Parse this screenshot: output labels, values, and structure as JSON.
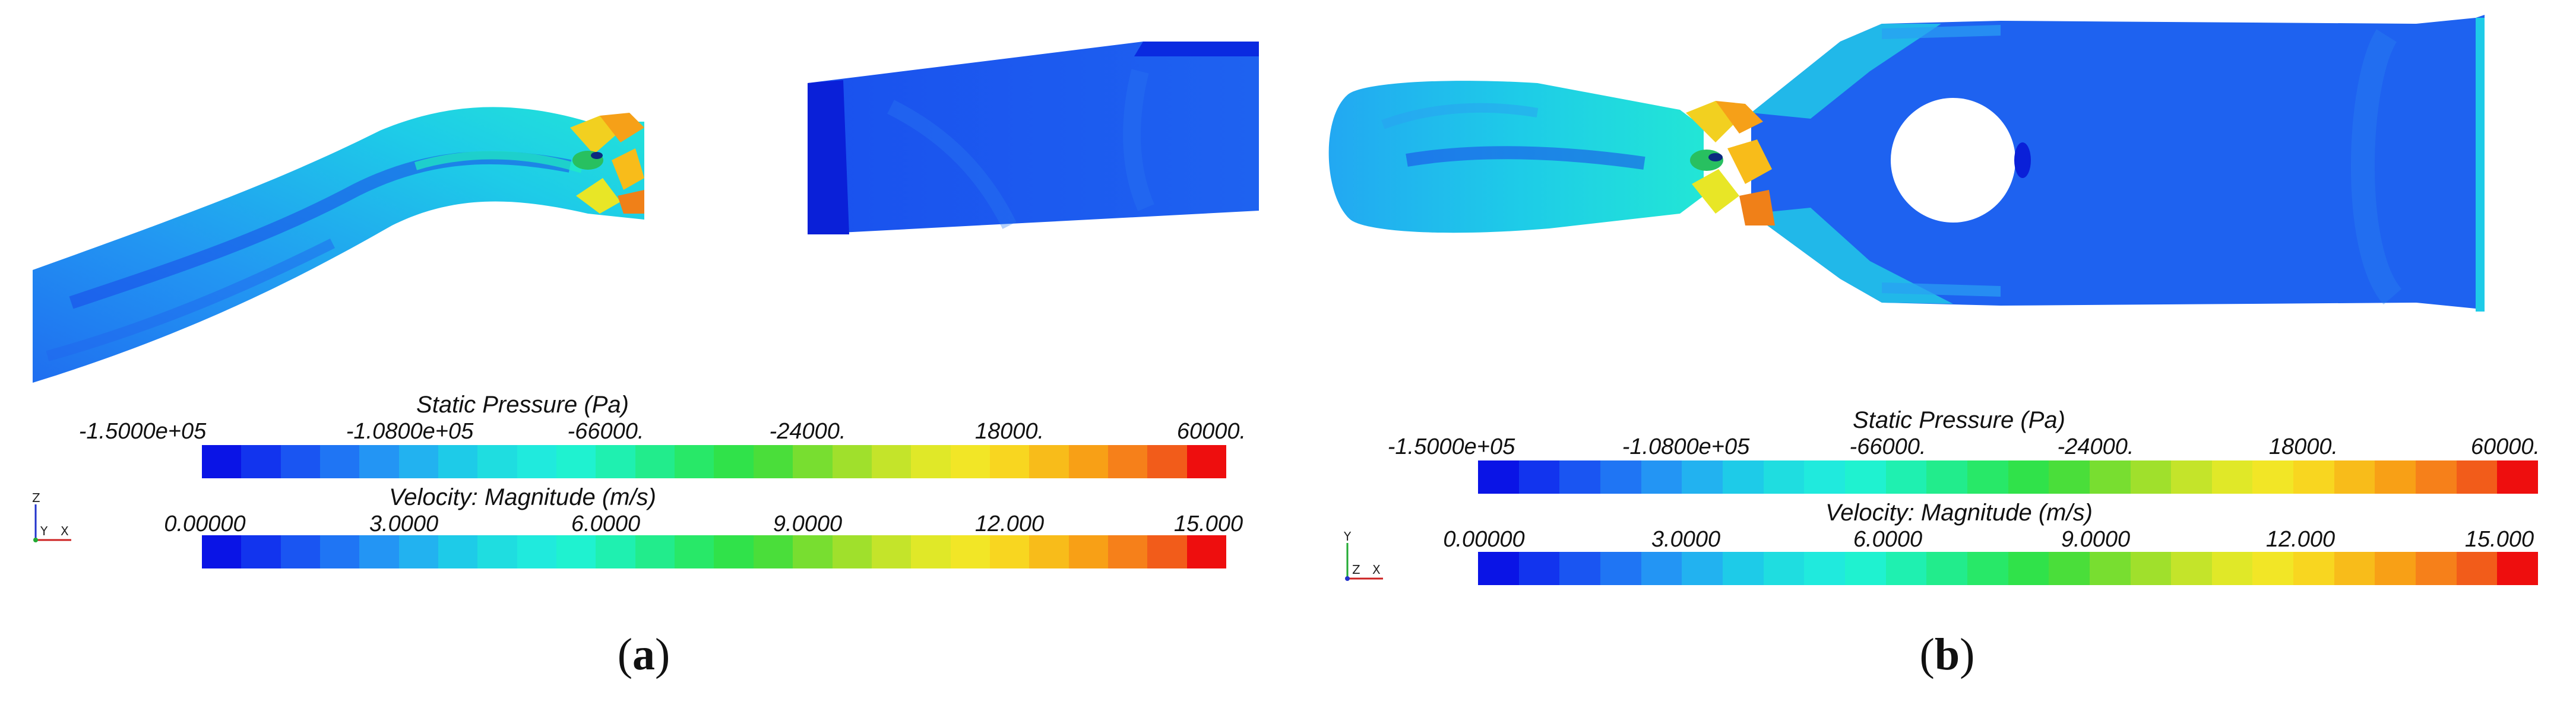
{
  "colormap": [
    "#0a14e6",
    "#1234ee",
    "#1a55f2",
    "#1f75f4",
    "#2395f4",
    "#22b2f0",
    "#1ecbe8",
    "#1fdde0",
    "#20eadd",
    "#1ff2d0",
    "#1ff0b0",
    "#22ec8c",
    "#28e868",
    "#30e24a",
    "#4ade3a",
    "#78de30",
    "#a0e02c",
    "#c4e42a",
    "#e0e828",
    "#f2e626",
    "#f8d620",
    "#f8bc1a",
    "#f8a016",
    "#f6801a",
    "#f25c1a",
    "#ee0e0e"
  ],
  "panels": [
    {
      "id": "a",
      "caption_letter": "a",
      "pressure_title": "Static Pressure (Pa)",
      "pressure_ticks": [
        "-1.5000e+05",
        "-1.0800e+05",
        "-66000.",
        "-24000.",
        "18000.",
        "60000."
      ],
      "velocity_title": "Velocity: Magnitude (m/s)",
      "velocity_ticks": [
        "0.00000",
        "3.0000",
        "6.0000",
        "9.0000",
        "12.000",
        "15.000"
      ],
      "axes": [
        "Z",
        "Y",
        "X"
      ]
    },
    {
      "id": "b",
      "caption_letter": "b",
      "pressure_title": "Static Pressure (Pa)",
      "pressure_ticks": [
        "-1.5000e+05",
        "-1.0800e+05",
        "-66000.",
        "-24000.",
        "18000.",
        "60000."
      ],
      "velocity_title": "Velocity: Magnitude (m/s)",
      "velocity_ticks": [
        "0.00000",
        "3.0000",
        "6.0000",
        "9.0000",
        "12.000",
        "15.000"
      ],
      "axes": [
        "Y",
        "Z",
        "X"
      ]
    }
  ]
}
